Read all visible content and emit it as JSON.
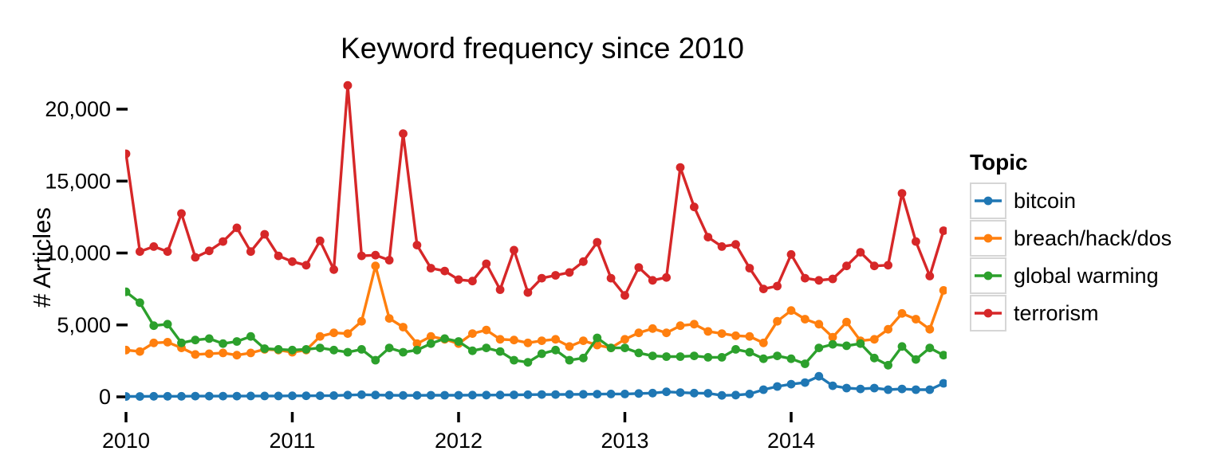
{
  "chart_data": {
    "type": "line",
    "title": "Keyword frequency since 2010",
    "xlabel": "",
    "ylabel": "# Articles",
    "legend_title": "Topic",
    "legend_position": "right",
    "grid": false,
    "x_start": "2010-01",
    "x_step_months": 1,
    "x_tick_labels": [
      "2010",
      "2011",
      "2012",
      "2013",
      "2014"
    ],
    "y_ticks": [
      0,
      5000,
      10000,
      15000,
      20000
    ],
    "y_tick_labels": [
      "0",
      "5,000",
      "10,000",
      "15,000",
      "20,000"
    ],
    "ylim": [
      0,
      21700
    ],
    "series": [
      {
        "name": "bitcoin",
        "color": "#1f77b4",
        "values": [
          30,
          30,
          40,
          40,
          40,
          50,
          50,
          50,
          50,
          60,
          60,
          60,
          70,
          70,
          80,
          90,
          120,
          150,
          130,
          110,
          100,
          100,
          110,
          110,
          110,
          120,
          120,
          130,
          140,
          150,
          160,
          160,
          170,
          180,
          190,
          200,
          200,
          230,
          260,
          350,
          300,
          260,
          250,
          100,
          120,
          200,
          500,
          720,
          880,
          990,
          1430,
          770,
          610,
          550,
          610,
          500,
          550,
          500,
          500,
          940
        ]
      },
      {
        "name": "breach/hack/dos",
        "color": "#ff7f0e",
        "values": [
          3250,
          3150,
          3750,
          3800,
          3400,
          2950,
          3000,
          3050,
          2900,
          3050,
          3300,
          3250,
          3100,
          3250,
          4200,
          4450,
          4400,
          5250,
          9100,
          5450,
          4850,
          3700,
          4200,
          4000,
          3700,
          4400,
          4650,
          4000,
          3950,
          3750,
          3900,
          4000,
          3500,
          3900,
          3600,
          3400,
          4000,
          4450,
          4750,
          4450,
          4950,
          5050,
          4550,
          4400,
          4250,
          4200,
          3750,
          5250,
          6000,
          5400,
          5050,
          4150,
          5200,
          3900,
          4000,
          4700,
          5800,
          5400,
          4700,
          7400
        ]
      },
      {
        "name": "global warming",
        "color": "#2ca02c",
        "values": [
          7300,
          6550,
          4950,
          5050,
          3750,
          3950,
          4050,
          3700,
          3850,
          4200,
          3350,
          3300,
          3250,
          3300,
          3400,
          3250,
          3100,
          3300,
          2550,
          3400,
          3100,
          3250,
          3700,
          4050,
          3850,
          3200,
          3400,
          3150,
          2550,
          2400,
          3000,
          3250,
          2550,
          2700,
          4100,
          3400,
          3400,
          3050,
          2850,
          2800,
          2800,
          2850,
          2750,
          2750,
          3300,
          3100,
          2650,
          2850,
          2650,
          2300,
          3400,
          3650,
          3550,
          3700,
          2700,
          2200,
          3500,
          2600,
          3400,
          2900
        ]
      },
      {
        "name": "terrorism",
        "color": "#d62728",
        "values": [
          16900,
          10100,
          10450,
          10100,
          12750,
          9700,
          10150,
          10800,
          11750,
          10100,
          11300,
          9800,
          9400,
          9150,
          10850,
          8850,
          21650,
          9800,
          9850,
          9500,
          18300,
          10550,
          8950,
          8750,
          8150,
          8050,
          9250,
          7450,
          10200,
          7250,
          8250,
          8450,
          8650,
          9400,
          10750,
          8250,
          7050,
          9000,
          8100,
          8300,
          15950,
          13200,
          11100,
          10450,
          10600,
          8950,
          7500,
          7700,
          9900,
          8250,
          8100,
          8200,
          9100,
          10050,
          9100,
          9150,
          14150,
          10800,
          8400,
          11550
        ]
      }
    ]
  }
}
